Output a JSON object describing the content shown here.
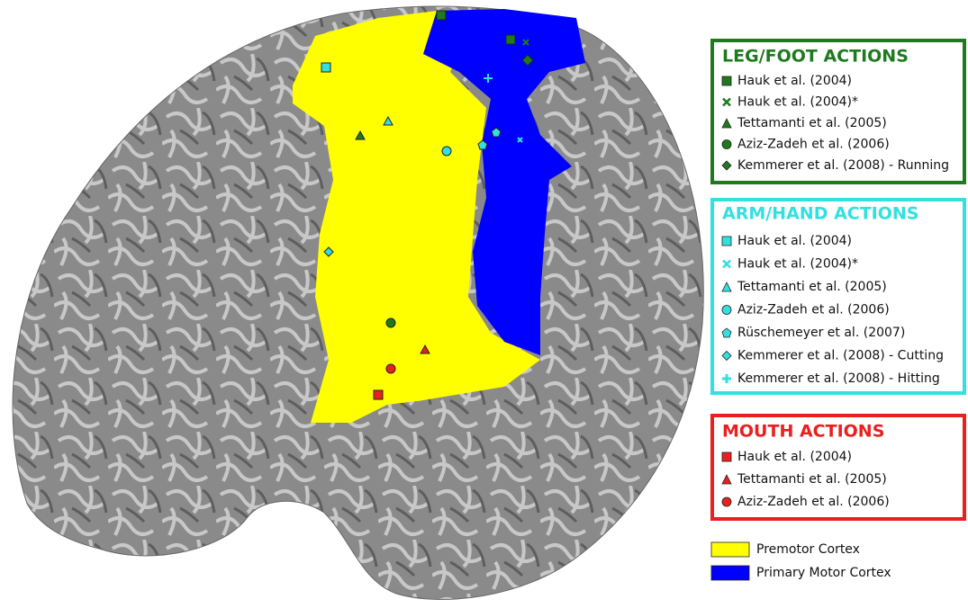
{
  "legend": {
    "groups": [
      {
        "title": "LEG/FOOT ACTIONS",
        "color": "#1e7a1e",
        "entries": [
          {
            "label": "Hauk et al. (2004)",
            "marker": "square"
          },
          {
            "label": "Hauk et al. (2004)*",
            "marker": "x"
          },
          {
            "label": "Tettamanti et al. (2005)",
            "marker": "triangle"
          },
          {
            "label": "Aziz-Zadeh et al. (2006)",
            "marker": "circle"
          },
          {
            "label": "Kemmerer et al. (2008) - Running",
            "marker": "diamond"
          }
        ]
      },
      {
        "title": "ARM/HAND ACTIONS",
        "color": "#33e0e0",
        "entries": [
          {
            "label": "Hauk et al. (2004)",
            "marker": "square"
          },
          {
            "label": "Hauk et al. (2004)*",
            "marker": "x"
          },
          {
            "label": "Tettamanti et al. (2005)",
            "marker": "triangle"
          },
          {
            "label": "Aziz-Zadeh et al. (2006)",
            "marker": "circle"
          },
          {
            "label": "Rüschemeyer et al. (2007)",
            "marker": "pentagon"
          },
          {
            "label": "Kemmerer et al. (2008) - Cutting",
            "marker": "diamond"
          },
          {
            "label": "Kemmerer et al. (2008) - Hitting",
            "marker": "plus"
          }
        ]
      },
      {
        "title": "MOUTH ACTIONS",
        "color": "#e8201e",
        "entries": [
          {
            "label": "Hauk et al. (2004)",
            "marker": "square"
          },
          {
            "label": "Tettamanti et al. (2005)",
            "marker": "triangle"
          },
          {
            "label": "Aziz-Zadeh et al. (2006)",
            "marker": "circle"
          }
        ]
      }
    ]
  },
  "regions": [
    {
      "label": "Premotor Cortex",
      "color": "#ffff00"
    },
    {
      "label": "Primary Motor Cortex",
      "color": "#0000ff"
    }
  ]
}
